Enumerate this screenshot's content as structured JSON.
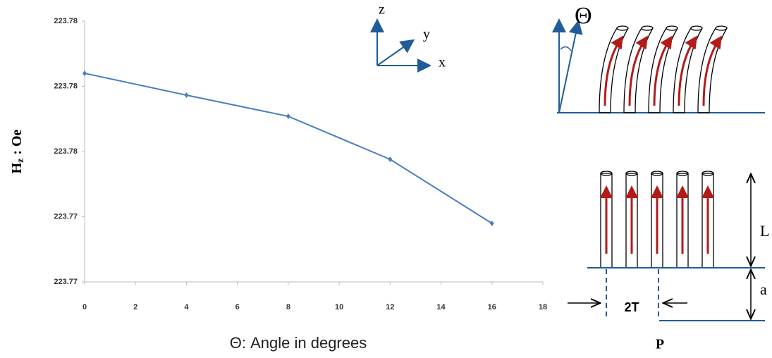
{
  "chart_data": {
    "type": "line",
    "x_label": "Θ:   Angle in degrees",
    "y_label": {
      "main": "H",
      "sub": "z",
      "rest": " : Oe"
    },
    "x": [
      0,
      4,
      8,
      12,
      16
    ],
    "series": [
      {
        "color": "#4a7ebf",
        "values": [
          223.7808,
          223.77946,
          223.77816,
          223.77552,
          223.77159
        ]
      }
    ],
    "xlim": [
      0,
      18
    ],
    "xticks": [
      0,
      2,
      4,
      6,
      8,
      10,
      12,
      14,
      16,
      18
    ],
    "ylim": [
      223.768,
      223.784
    ],
    "yticks": [
      {
        "value": 223.768,
        "label": "223.77"
      },
      {
        "value": 223.772,
        "label": "223.77"
      },
      {
        "value": 223.776,
        "label": "223.78"
      },
      {
        "value": 223.78,
        "label": "223.78"
      },
      {
        "value": 223.784,
        "label": "223.78"
      }
    ],
    "grid": false
  },
  "diagram": {
    "axis_z": "z",
    "axis_y": "y",
    "axis_x": "x",
    "theta": "Θ",
    "length": "L",
    "gap": "a",
    "thickness": "2T",
    "pitch": "P"
  }
}
